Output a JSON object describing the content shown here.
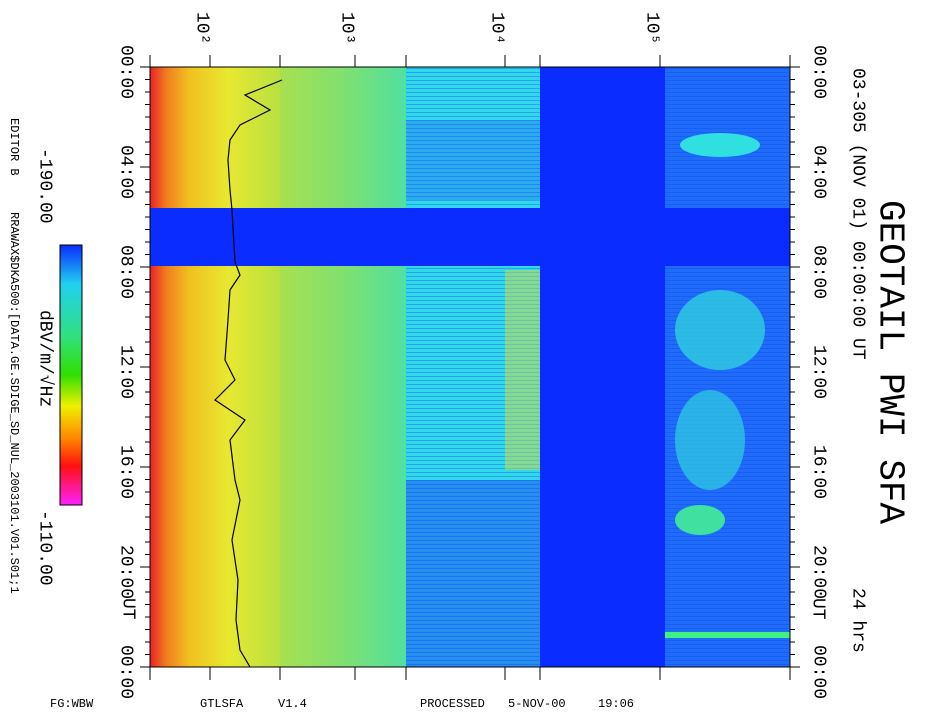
{
  "title": "GEOTAIL PWI SFA",
  "subtitle": "03-305 (NOV 01) 00:00:00 UT",
  "duration": "24 hrs",
  "frequency_ticks": [
    "10²",
    "10³",
    "10⁴",
    "10⁵"
  ],
  "time_ticks": [
    "00:00",
    "04:00",
    "08:00",
    "12:00",
    "16:00",
    "20:00",
    "00:00"
  ],
  "time_unit": "UT",
  "colorbar": {
    "min_label": "-190.00",
    "max_label": "-110.00",
    "unit": "dBV/m/√Hz"
  },
  "editor": "EDITOR B",
  "source": "RRAWAX$DKA500:[DATA.GE.SDIGE_SD_NUL_2003101.V01.S01;1",
  "footer": {
    "fg": "FG:WBW",
    "program": "GTLSFA",
    "version": "V1.4",
    "processed": "PROCESSED",
    "date": "5-NOV-00",
    "time": "19:06"
  }
}
